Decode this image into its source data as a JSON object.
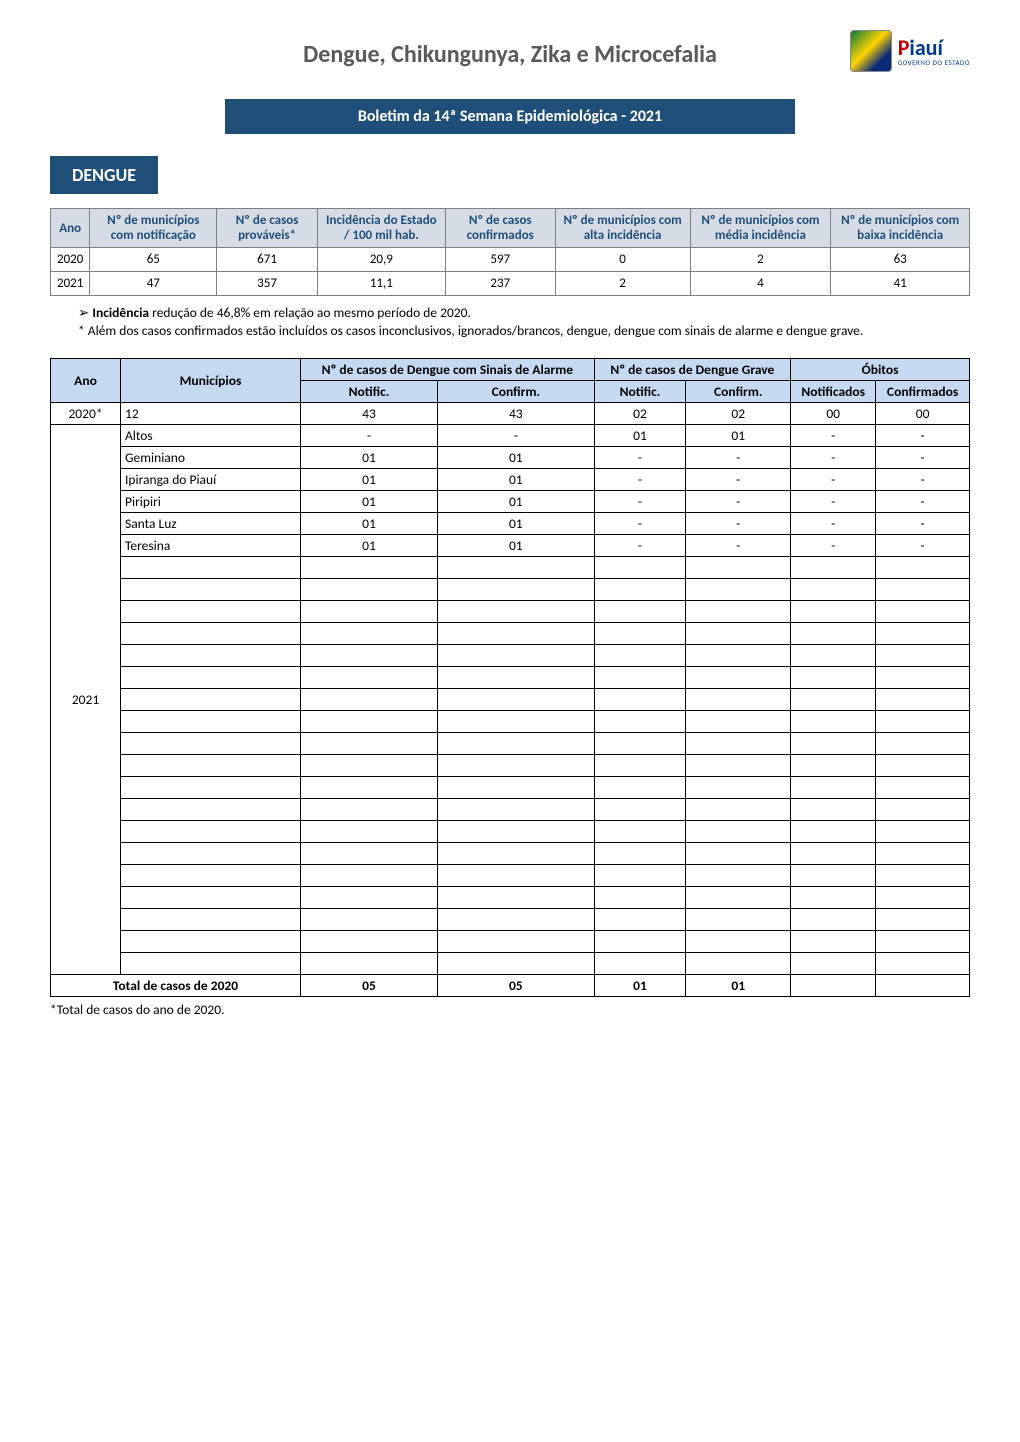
{
  "colors": {
    "header_bg": "#1f4e79",
    "header_text": "#ffffff",
    "tbl1_header_bg": "#d6dce5",
    "tbl1_header_text": "#1f4e79",
    "tbl2_header_bg": "#c5d9f1",
    "border_tbl1": "#7f7f7f",
    "border_tbl2": "#000000",
    "title_text": "#595959"
  },
  "logo": {
    "state": "Piauí",
    "sub": "GOVERNO DO ESTADO"
  },
  "main_title": "Dengue, Chikungunya, Zika e Microcefalia",
  "subtitle": "Boletim da 14ª Semana Epidemiológica - 2021",
  "section_dengue": "DENGUE",
  "tbl1": {
    "headers": [
      "Ano",
      "Nº de municípios com notificação",
      "Nº de casos prováveis*",
      "Incidência do Estado / 100 mil hab.",
      "Nº de casos confirmados",
      "Nº de municípios com alta incidência",
      "Nº de municípios com média incidência",
      "Nº de municípios com baixa incidência"
    ],
    "rows": [
      [
        "2020",
        "65",
        "671",
        "20,9",
        "597",
        "0",
        "2",
        "63"
      ],
      [
        "2021",
        "47",
        "357",
        "11,1",
        "237",
        "2",
        "4",
        "41"
      ]
    ]
  },
  "notes": {
    "line1_a": "Incidência",
    "line1_b": " redução de 46,8% em relação ao mesmo período de 2020.",
    "line2": "* Além dos casos confirmados estão incluídos os casos inconclusivos, ignorados/brancos, dengue, dengue com sinais de alarme e dengue grave."
  },
  "tbl2": {
    "group_headers": {
      "ano": "Ano",
      "muni": "Municípios",
      "sinais": "Nº de casos de Dengue com Sinais de Alarme",
      "grave": "Nº de casos de Dengue Grave",
      "obitos": "Óbitos"
    },
    "sub_headers": {
      "notific": "Notific.",
      "confirm": "Confirm.",
      "notificados": "Notificados",
      "confirmados": "Confirmados"
    },
    "row_2020": {
      "ano": "2020*",
      "muni": "12",
      "s_not": "43",
      "s_conf": "43",
      "g_not": "02",
      "g_conf": "02",
      "o_not": "00",
      "o_conf": "00"
    },
    "rows_2021": [
      {
        "muni": "Altos",
        "s_not": "-",
        "s_conf": "-",
        "g_not": "01",
        "g_conf": "01",
        "o_not": "-",
        "o_conf": "-"
      },
      {
        "muni": "Geminiano",
        "s_not": "01",
        "s_conf": "01",
        "g_not": "-",
        "g_conf": "-",
        "o_not": "-",
        "o_conf": "-"
      },
      {
        "muni": "Ipiranga do Piauí",
        "s_not": "01",
        "s_conf": "01",
        "g_not": "-",
        "g_conf": "-",
        "o_not": "-",
        "o_conf": "-"
      },
      {
        "muni": "Piripiri",
        "s_not": "01",
        "s_conf": "01",
        "g_not": "-",
        "g_conf": "-",
        "o_not": "-",
        "o_conf": "-"
      },
      {
        "muni": "Santa Luz",
        "s_not": "01",
        "s_conf": "01",
        "g_not": "-",
        "g_conf": "-",
        "o_not": "-",
        "o_conf": "-"
      },
      {
        "muni": "Teresina",
        "s_not": "01",
        "s_conf": "01",
        "g_not": "-",
        "g_conf": "-",
        "o_not": "-",
        "o_conf": "-"
      }
    ],
    "blank_rows_2021": 19,
    "ano_2021": "2021",
    "total": {
      "label": "Total de casos de 2020",
      "s_not": "05",
      "s_conf": "05",
      "g_not": "01",
      "g_conf": "01",
      "o_not": "",
      "o_conf": ""
    }
  },
  "footnote": "*Total de casos do ano de 2020."
}
